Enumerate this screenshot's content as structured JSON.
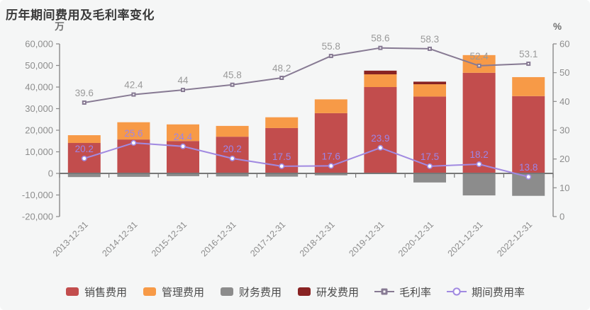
{
  "title": "历年期间费用及毛利率变化",
  "chart_data": {
    "type": "combo-stacked-bar-line",
    "categories": [
      "2013-12-31",
      "2014-12-31",
      "2015-12-31",
      "2016-12-31",
      "2017-12-31",
      "2018-12-31",
      "2019-12-31",
      "2020-12-31",
      "2021-12-31",
      "2022-12-31"
    ],
    "bar_series": [
      {
        "name": "销售费用",
        "color": "#c24d4d",
        "values": [
          14100,
          15700,
          15000,
          17000,
          21000,
          27900,
          40000,
          35600,
          46600,
          35800
        ]
      },
      {
        "name": "管理费用",
        "color": "#f79a47",
        "values": [
          3600,
          8000,
          7700,
          5000,
          5000,
          6400,
          5900,
          5700,
          8200,
          8800
        ]
      },
      {
        "name": "财务费用",
        "color": "#8c8c8c",
        "values": [
          -1700,
          -1600,
          -1300,
          -1400,
          -1500,
          -900,
          -300,
          -4200,
          -10200,
          -10400
        ]
      },
      {
        "name": "研发费用",
        "color": "#892323",
        "values": [
          0,
          0,
          0,
          0,
          0,
          0,
          1700,
          1200,
          0,
          0
        ]
      }
    ],
    "line_series": [
      {
        "name": "毛利率",
        "axis": "right",
        "marker": "square",
        "color": "#877a93",
        "label_color": "#9a9a9a",
        "values": [
          39.6,
          42.4,
          44,
          45.8,
          48.2,
          55.8,
          58.6,
          58.3,
          52.4,
          53.1
        ],
        "labels": [
          "39.6",
          "42.4",
          "44",
          "45.8",
          "48.2",
          "55.8",
          "58.6",
          "58.3",
          "52.4",
          "53.1"
        ]
      },
      {
        "name": "期间费用率",
        "axis": "right",
        "marker": "circle",
        "color": "#a18ae1",
        "label_color": "#9c85e8",
        "values": [
          20.2,
          25.6,
          24.4,
          20.2,
          17.5,
          17.6,
          23.9,
          17.5,
          18.2,
          13.8
        ],
        "labels": [
          "20.2",
          "25.6",
          "24.4",
          "20.2",
          "17.5",
          "17.6",
          "23.9",
          "17.5",
          "18.2",
          "13.8"
        ]
      }
    ],
    "left_axis": {
      "name": "万",
      "min": -20000,
      "max": 60000,
      "ticks": [
        {
          "v": 60000,
          "label": "60,000"
        },
        {
          "v": 50000,
          "label": "50,000"
        },
        {
          "v": 40000,
          "label": "40,000"
        },
        {
          "v": 30000,
          "label": "30,000"
        },
        {
          "v": 20000,
          "label": "20,000"
        },
        {
          "v": 10000,
          "label": "10,000"
        },
        {
          "v": 0,
          "label": "0"
        },
        {
          "v": -10000,
          "label": "-10,000"
        },
        {
          "v": -20000,
          "label": "-20,000"
        }
      ]
    },
    "right_axis": {
      "name": "%",
      "min": 0,
      "max": 60,
      "ticks": [
        {
          "v": 60,
          "label": "60"
        },
        {
          "v": 50,
          "label": "50"
        },
        {
          "v": 40,
          "label": "40"
        },
        {
          "v": 30,
          "label": "30"
        },
        {
          "v": 20,
          "label": "20"
        },
        {
          "v": 10,
          "label": "10"
        },
        {
          "v": 0,
          "label": "0"
        }
      ]
    },
    "grid": false,
    "legend_position": "bottom"
  },
  "legend": {
    "items": [
      {
        "label": "销售费用",
        "color": "#c24d4d",
        "marker": "rect"
      },
      {
        "label": "管理费用",
        "color": "#f79a47",
        "marker": "rect"
      },
      {
        "label": "财务费用",
        "color": "#8c8c8c",
        "marker": "rect"
      },
      {
        "label": "研发费用",
        "color": "#892323",
        "marker": "rect"
      },
      {
        "label": "毛利率",
        "color": "#877a93",
        "marker": "line-square"
      },
      {
        "label": "期间费用率",
        "color": "#a18ae1",
        "marker": "line-circle"
      }
    ]
  },
  "style": {
    "axis_line_color": "#8a8a8a",
    "axis_text_color": "#8d8d8d",
    "zero_line_color": "#777777",
    "background": "#f5f6f6"
  }
}
